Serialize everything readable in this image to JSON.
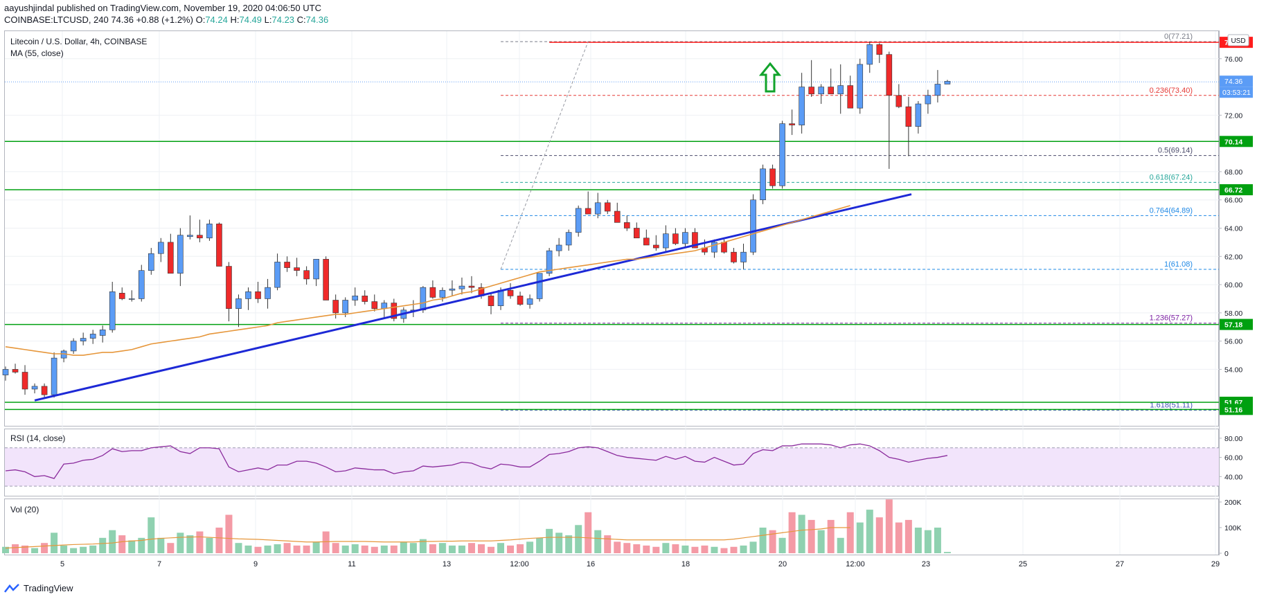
{
  "header": {
    "author": "aayushjindal",
    "published": "published on TradingView.com, November 19, 2020 04:06:50 UTC",
    "symbol": "COINBASE:LTCUSD, 240",
    "last": "74.36",
    "change": "+0.88 (+1.2%)",
    "o_label": "O:",
    "o": "74.24",
    "h_label": "H:",
    "h": "74.49",
    "l_label": "L:",
    "l": "74.23",
    "c_label": "C:",
    "c": "74.36"
  },
  "pane_titles": {
    "main": "Litecoin / U.S. Dollar, 4h, COINBASE",
    "ma": "MA (55, close)",
    "rsi": "RSI (14, close)",
    "vol": "Vol (20)"
  },
  "currency_button": "USD",
  "footer": {
    "brand": "TradingView"
  },
  "colors": {
    "up": "#5b9cf6",
    "down": "#ef2a2a",
    "support": "#00a010",
    "resistance": "#ff1c1c",
    "trendline": "#1d29d6",
    "ma": "#e6963a",
    "rsi": "#8a2a9c",
    "rsi_band": "#f2e4fb",
    "vol_up": "#8fd1b0",
    "vol_down": "#f49aa5",
    "arrow": "#11a32b"
  },
  "chart_data": [
    {
      "type": "candlestick",
      "title": "Litecoin / U.S. Dollar, 4h, COINBASE",
      "x_ticks": [
        "5",
        "7",
        "9",
        "11",
        "13",
        "12:00",
        "16",
        "18",
        "20",
        "12:00",
        "23",
        "25",
        "27",
        "29"
      ],
      "ylim": [
        50,
        78
      ],
      "y_ticks": [
        "54.00",
        "56.00",
        "58.00",
        "60.00",
        "62.00",
        "64.00",
        "66.00",
        "68.00",
        "72.00",
        "76.00"
      ],
      "candles_ohlc": [
        [
          53.6,
          54.2,
          53.2,
          54.0
        ],
        [
          54.0,
          54.4,
          53.7,
          53.8
        ],
        [
          53.8,
          54.3,
          52.2,
          52.6
        ],
        [
          52.6,
          53.0,
          52.3,
          52.8
        ],
        [
          52.8,
          53.0,
          52.0,
          52.2
        ],
        [
          52.2,
          55.2,
          52.0,
          54.8
        ],
        [
          54.8,
          55.4,
          54.5,
          55.3
        ],
        [
          55.3,
          56.2,
          55.1,
          56.0
        ],
        [
          56.0,
          56.6,
          55.7,
          56.2
        ],
        [
          56.2,
          56.8,
          55.8,
          56.5
        ],
        [
          56.4,
          57.1,
          55.9,
          56.8
        ],
        [
          56.8,
          60.2,
          56.6,
          59.5
        ],
        [
          59.4,
          59.8,
          58.9,
          59.0
        ],
        [
          59.0,
          59.6,
          58.8,
          59.0
        ],
        [
          59.0,
          61.4,
          58.8,
          61.0
        ],
        [
          61.0,
          62.6,
          60.7,
          62.2
        ],
        [
          62.2,
          63.3,
          61.6,
          63.0
        ],
        [
          63.0,
          63.6,
          60.8,
          60.8
        ],
        [
          60.8,
          64.0,
          59.9,
          63.5
        ],
        [
          63.4,
          64.9,
          63.2,
          63.5
        ],
        [
          63.5,
          64.6,
          63.0,
          63.3
        ],
        [
          63.3,
          64.6,
          63.1,
          64.3
        ],
        [
          64.3,
          64.4,
          61.3,
          61.3
        ],
        [
          61.3,
          61.6,
          57.4,
          58.3
        ],
        [
          58.3,
          59.3,
          57.0,
          59.0
        ],
        [
          59.0,
          59.8,
          58.2,
          59.5
        ],
        [
          59.5,
          60.2,
          58.7,
          59.0
        ],
        [
          59.0,
          60.4,
          58.3,
          59.8
        ],
        [
          59.8,
          62.2,
          59.6,
          61.6
        ],
        [
          61.6,
          62.0,
          60.9,
          61.2
        ],
        [
          61.2,
          61.9,
          60.6,
          61.0
        ],
        [
          61.0,
          61.3,
          60.0,
          60.4
        ],
        [
          60.4,
          61.8,
          59.9,
          61.8
        ],
        [
          61.8,
          62.0,
          58.9,
          58.9
        ],
        [
          58.9,
          59.3,
          57.6,
          58.0
        ],
        [
          58.0,
          59.1,
          57.7,
          58.9
        ],
        [
          58.9,
          59.8,
          58.5,
          59.2
        ],
        [
          59.2,
          59.6,
          58.6,
          58.8
        ],
        [
          58.8,
          59.3,
          58.1,
          58.3
        ],
        [
          58.3,
          58.9,
          57.6,
          58.7
        ],
        [
          58.7,
          59.0,
          57.4,
          57.6
        ],
        [
          57.6,
          58.4,
          57.3,
          58.2
        ],
        [
          58.2,
          58.9,
          57.7,
          58.2
        ],
        [
          58.2,
          59.9,
          58.0,
          59.8
        ],
        [
          59.8,
          60.3,
          59.0,
          59.1
        ],
        [
          59.1,
          59.8,
          58.8,
          59.6
        ],
        [
          59.6,
          60.3,
          59.2,
          59.7
        ],
        [
          59.7,
          60.5,
          59.3,
          59.9
        ],
        [
          59.9,
          60.6,
          59.4,
          59.8
        ],
        [
          59.8,
          60.1,
          59.0,
          59.2
        ],
        [
          59.2,
          59.4,
          57.9,
          58.5
        ],
        [
          58.5,
          59.8,
          58.2,
          59.6
        ],
        [
          59.6,
          60.1,
          59.0,
          59.2
        ],
        [
          59.2,
          59.5,
          58.5,
          58.6
        ],
        [
          58.6,
          59.3,
          58.3,
          59.0
        ],
        [
          59.0,
          60.8,
          58.8,
          60.8
        ],
        [
          60.8,
          62.6,
          60.6,
          62.4
        ],
        [
          62.4,
          63.3,
          62.0,
          62.8
        ],
        [
          62.8,
          63.9,
          62.4,
          63.7
        ],
        [
          63.7,
          65.6,
          63.4,
          65.4
        ],
        [
          65.4,
          66.6,
          65.0,
          65.0
        ],
        [
          65.0,
          66.5,
          64.7,
          65.8
        ],
        [
          65.8,
          66.0,
          65.0,
          65.2
        ],
        [
          65.2,
          65.8,
          64.4,
          64.4
        ],
        [
          64.4,
          64.9,
          63.8,
          64.0
        ],
        [
          64.0,
          64.4,
          63.3,
          63.3
        ],
        [
          63.3,
          63.9,
          62.8,
          62.8
        ],
        [
          62.8,
          63.5,
          62.4,
          62.6
        ],
        [
          62.6,
          64.2,
          62.3,
          63.6
        ],
        [
          63.6,
          64.0,
          62.8,
          62.9
        ],
        [
          62.9,
          64.0,
          62.6,
          63.7
        ],
        [
          63.7,
          64.0,
          62.6,
          62.6
        ],
        [
          62.6,
          63.2,
          62.1,
          62.3
        ],
        [
          62.3,
          63.2,
          61.9,
          63.0
        ],
        [
          63.0,
          63.2,
          62.2,
          62.3
        ],
        [
          62.3,
          62.6,
          61.5,
          61.6
        ],
        [
          61.6,
          62.9,
          61.1,
          62.3
        ],
        [
          62.3,
          66.4,
          62.1,
          66.0
        ],
        [
          66.0,
          68.5,
          65.7,
          68.2
        ],
        [
          68.2,
          68.5,
          66.8,
          67.0
        ],
        [
          67.0,
          71.6,
          66.8,
          71.4
        ],
        [
          71.4,
          72.4,
          70.6,
          71.3
        ],
        [
          71.3,
          75.0,
          70.7,
          74.0
        ],
        [
          74.0,
          75.9,
          73.3,
          73.5
        ],
        [
          73.5,
          74.2,
          72.8,
          74.0
        ],
        [
          74.0,
          75.3,
          73.5,
          73.5
        ],
        [
          73.5,
          75.6,
          72.1,
          74.1
        ],
        [
          74.1,
          74.8,
          72.5,
          72.5
        ],
        [
          72.5,
          76.0,
          72.1,
          75.6
        ],
        [
          75.6,
          77.2,
          75.0,
          77.0
        ],
        [
          77.0,
          77.1,
          75.7,
          76.3
        ],
        [
          76.3,
          76.5,
          68.2,
          73.4
        ],
        [
          73.4,
          74.2,
          72.5,
          72.6
        ],
        [
          72.6,
          73.3,
          69.1,
          71.2
        ],
        [
          71.2,
          73.0,
          70.7,
          72.8
        ],
        [
          72.8,
          73.8,
          72.1,
          73.4
        ],
        [
          73.4,
          75.2,
          72.9,
          74.2
        ],
        [
          74.2,
          74.5,
          74.2,
          74.4
        ]
      ],
      "ma55": [
        55.6,
        55.5,
        55.4,
        55.3,
        55.2,
        55.1,
        55.1,
        55.0,
        55.0,
        55.1,
        55.2,
        55.2,
        55.3,
        55.4,
        55.6,
        55.8,
        55.9,
        56.0,
        56.1,
        56.2,
        56.3,
        56.5,
        56.6,
        56.7,
        56.8,
        56.9,
        57.0,
        57.1,
        57.3,
        57.4,
        57.5,
        57.6,
        57.7,
        57.8,
        57.9,
        57.9,
        58.0,
        58.1,
        58.2,
        58.3,
        58.4,
        58.5,
        58.6,
        58.7,
        58.9,
        59.0,
        59.2,
        59.4,
        59.5,
        59.7,
        59.9,
        60.1,
        60.3,
        60.5,
        60.7,
        60.9,
        61.0,
        61.1,
        61.2,
        61.3,
        61.4,
        61.5,
        61.6,
        61.7,
        61.8,
        61.8,
        61.9,
        62.0,
        62.1,
        62.2,
        62.3,
        62.4,
        62.6,
        62.8,
        63.0,
        63.2,
        63.4,
        63.6,
        63.8,
        64.0,
        64.2,
        64.4,
        64.6,
        64.8,
        65.0,
        65.2,
        65.4,
        65.6
      ],
      "horizontal_levels": [
        {
          "label": "77.16",
          "value": 77.16,
          "kind": "resistance"
        },
        {
          "label": "70.14",
          "value": 70.14,
          "kind": "support"
        },
        {
          "label": "66.72",
          "value": 66.72,
          "kind": "support"
        },
        {
          "label": "57.18",
          "value": 57.18,
          "kind": "support"
        },
        {
          "label": "51.67",
          "value": 51.67,
          "kind": "support"
        },
        {
          "label": "51.16",
          "value": 51.16,
          "kind": "support"
        }
      ],
      "fibonacci": [
        {
          "label": "0(77.21)",
          "value": 77.21
        },
        {
          "label": "0.236(73.40)",
          "value": 73.4
        },
        {
          "label": "0.5(69.14)",
          "value": 69.14
        },
        {
          "label": "0.618(67.24)",
          "value": 67.24
        },
        {
          "label": "0.764(64.89)",
          "value": 64.89
        },
        {
          "label": "1(61.08)",
          "value": 61.08
        },
        {
          "label": "1.236(57.27)",
          "value": 57.27
        },
        {
          "label": "1.618(51.11)",
          "value": 51.11
        }
      ],
      "trendline": {
        "from_price": 51.8,
        "to_price": 66.4
      },
      "last_price": {
        "value": 74.36,
        "label": "74.36",
        "countdown": "03:53:21"
      },
      "annotation": "green up arrow"
    },
    {
      "type": "line",
      "title": "RSI (14, close)",
      "ylim": [
        20,
        90
      ],
      "y_ticks": [
        "80.00",
        "60.00",
        "40.00"
      ],
      "band": [
        30,
        70
      ],
      "values": [
        46,
        47,
        45,
        40,
        41,
        38,
        53,
        54,
        57,
        58,
        62,
        69,
        66,
        67,
        67,
        70,
        71,
        72,
        66,
        64,
        70,
        70,
        69,
        50,
        45,
        47,
        49,
        47,
        52,
        52,
        56,
        56,
        54,
        50,
        45,
        46,
        49,
        48,
        47,
        47,
        43,
        45,
        46,
        51,
        50,
        51,
        52,
        55,
        54,
        50,
        48,
        53,
        52,
        50,
        50,
        56,
        63,
        64,
        66,
        70,
        71,
        70,
        66,
        62,
        60,
        59,
        58,
        57,
        61,
        58,
        61,
        56,
        55,
        60,
        56,
        52,
        53,
        64,
        68,
        67,
        72,
        72,
        74,
        74,
        74,
        73,
        70,
        73,
        74,
        72,
        67,
        60,
        58,
        55,
        57,
        59,
        60,
        62
      ]
    },
    {
      "type": "bar",
      "title": "Vol (20)",
      "ylim": [
        0,
        200
      ],
      "y_ticks": [
        "200K",
        "100K",
        "0"
      ],
      "values_k": [
        25,
        35,
        30,
        20,
        40,
        80,
        30,
        20,
        25,
        30,
        60,
        90,
        70,
        50,
        60,
        140,
        60,
        40,
        80,
        70,
        85,
        60,
        100,
        150,
        40,
        30,
        25,
        30,
        35,
        40,
        30,
        30,
        45,
        85,
        40,
        30,
        35,
        30,
        25,
        30,
        30,
        45,
        40,
        55,
        35,
        40,
        30,
        30,
        40,
        35,
        25,
        40,
        30,
        35,
        45,
        60,
        95,
        80,
        70,
        110,
        160,
        90,
        70,
        45,
        40,
        35,
        30,
        25,
        40,
        35,
        30,
        25,
        30,
        25,
        20,
        25,
        30,
        45,
        100,
        90,
        60,
        160,
        150,
        130,
        90,
        130,
        60,
        160,
        120,
        170,
        140,
        210,
        120,
        130,
        100,
        90,
        100,
        5
      ],
      "ma20_k": [
        20,
        22,
        24,
        26,
        28,
        30,
        32,
        34,
        35,
        36,
        38,
        40,
        45,
        48,
        50,
        55,
        58,
        60,
        62,
        63,
        64,
        62,
        60,
        58,
        56,
        55,
        54,
        52,
        50,
        48,
        46,
        44,
        44,
        45,
        46,
        46,
        46,
        46,
        45,
        44,
        44,
        44,
        44,
        46,
        46,
        47,
        47,
        48,
        48,
        48,
        48,
        50,
        52,
        55,
        58,
        60,
        62,
        62,
        62,
        62,
        60,
        58,
        56,
        54,
        52,
        52,
        52,
        52,
        52,
        52,
        52,
        52,
        52,
        52,
        52,
        55,
        60,
        65,
        70,
        75,
        80,
        85,
        90,
        92,
        95,
        100,
        100,
        100
      ]
    }
  ]
}
